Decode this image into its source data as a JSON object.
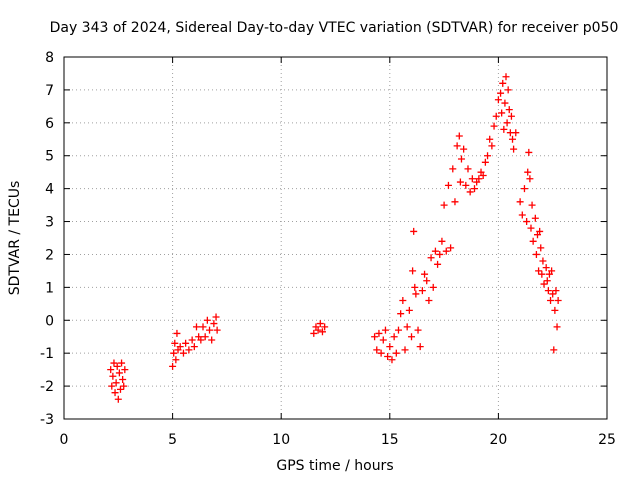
{
  "chart_data": {
    "type": "scatter",
    "title": "Day 343 of 2024, Sidereal Day-to-day VTEC variation (SDTVAR) for receiver p050",
    "xlabel": "GPS time / hours",
    "ylabel": "SDTVAR / TECUs",
    "xlim": [
      0,
      25
    ],
    "ylim": [
      -3,
      8
    ],
    "xticks": [
      0,
      5,
      10,
      15,
      20,
      25
    ],
    "yticks": [
      -3,
      -2,
      -1,
      0,
      1,
      2,
      3,
      4,
      5,
      6,
      7,
      8
    ],
    "grid": true,
    "marker": "plus",
    "color": "#ff0000",
    "series": [
      {
        "name": "SDTVAR",
        "points": [
          [
            2.15,
            -1.5
          ],
          [
            2.2,
            -2.0
          ],
          [
            2.25,
            -1.7
          ],
          [
            2.3,
            -1.3
          ],
          [
            2.35,
            -2.2
          ],
          [
            2.4,
            -1.9
          ],
          [
            2.45,
            -1.4
          ],
          [
            2.5,
            -2.4
          ],
          [
            2.55,
            -1.6
          ],
          [
            2.6,
            -2.1
          ],
          [
            2.65,
            -1.3
          ],
          [
            2.7,
            -1.8
          ],
          [
            2.75,
            -2.0
          ],
          [
            2.8,
            -1.5
          ],
          [
            5.0,
            -1.4
          ],
          [
            5.05,
            -1.0
          ],
          [
            5.1,
            -0.7
          ],
          [
            5.15,
            -1.2
          ],
          [
            5.2,
            -0.4
          ],
          [
            5.25,
            -0.9
          ],
          [
            5.35,
            -0.8
          ],
          [
            5.5,
            -1.0
          ],
          [
            5.6,
            -0.7
          ],
          [
            5.75,
            -0.9
          ],
          [
            5.9,
            -0.6
          ],
          [
            6.0,
            -0.8
          ],
          [
            6.1,
            -0.2
          ],
          [
            6.2,
            -0.5
          ],
          [
            6.3,
            -0.6
          ],
          [
            6.4,
            -0.2
          ],
          [
            6.5,
            -0.5
          ],
          [
            6.6,
            0.0
          ],
          [
            6.7,
            -0.3
          ],
          [
            6.8,
            -0.6
          ],
          [
            6.9,
            -0.1
          ],
          [
            7.0,
            0.1
          ],
          [
            7.05,
            -0.3
          ],
          [
            11.5,
            -0.4
          ],
          [
            11.6,
            -0.2
          ],
          [
            11.7,
            -0.3
          ],
          [
            11.8,
            -0.1
          ],
          [
            11.9,
            -0.35
          ],
          [
            12.0,
            -0.2
          ],
          [
            14.3,
            -0.5
          ],
          [
            14.4,
            -0.9
          ],
          [
            14.5,
            -0.4
          ],
          [
            14.6,
            -1.0
          ],
          [
            14.7,
            -0.6
          ],
          [
            14.8,
            -0.3
          ],
          [
            14.9,
            -1.1
          ],
          [
            15.0,
            -0.8
          ],
          [
            15.1,
            -1.2
          ],
          [
            15.2,
            -0.5
          ],
          [
            15.3,
            -1.0
          ],
          [
            15.4,
            -0.3
          ],
          [
            15.5,
            0.2
          ],
          [
            15.6,
            0.6
          ],
          [
            15.7,
            -0.9
          ],
          [
            15.8,
            -0.2
          ],
          [
            15.9,
            0.3
          ],
          [
            16.0,
            -0.5
          ],
          [
            16.05,
            1.5
          ],
          [
            16.1,
            2.7
          ],
          [
            16.15,
            1.0
          ],
          [
            16.2,
            0.8
          ],
          [
            16.3,
            -0.3
          ],
          [
            16.4,
            -0.8
          ],
          [
            16.5,
            0.9
          ],
          [
            16.6,
            1.4
          ],
          [
            16.7,
            1.2
          ],
          [
            16.8,
            0.6
          ],
          [
            16.9,
            1.9
          ],
          [
            17.0,
            1.0
          ],
          [
            17.1,
            2.1
          ],
          [
            17.2,
            1.7
          ],
          [
            17.3,
            2.0
          ],
          [
            17.4,
            2.4
          ],
          [
            17.5,
            3.5
          ],
          [
            17.6,
            2.1
          ],
          [
            17.7,
            4.1
          ],
          [
            17.8,
            2.2
          ],
          [
            17.9,
            4.6
          ],
          [
            18.0,
            3.6
          ],
          [
            18.1,
            5.3
          ],
          [
            18.2,
            5.6
          ],
          [
            18.25,
            4.2
          ],
          [
            18.3,
            4.9
          ],
          [
            18.4,
            5.2
          ],
          [
            18.5,
            4.1
          ],
          [
            18.6,
            4.6
          ],
          [
            18.7,
            3.9
          ],
          [
            18.8,
            4.3
          ],
          [
            18.9,
            4.0
          ],
          [
            19.0,
            4.2
          ],
          [
            19.1,
            4.3
          ],
          [
            19.2,
            4.5
          ],
          [
            19.3,
            4.4
          ],
          [
            19.4,
            4.8
          ],
          [
            19.5,
            5.0
          ],
          [
            19.6,
            5.5
          ],
          [
            19.7,
            5.3
          ],
          [
            19.8,
            5.9
          ],
          [
            19.9,
            6.2
          ],
          [
            20.0,
            6.7
          ],
          [
            20.1,
            6.9
          ],
          [
            20.15,
            6.3
          ],
          [
            20.2,
            7.2
          ],
          [
            20.25,
            5.8
          ],
          [
            20.3,
            6.6
          ],
          [
            20.35,
            7.4
          ],
          [
            20.4,
            6.0
          ],
          [
            20.45,
            7.0
          ],
          [
            20.5,
            6.4
          ],
          [
            20.55,
            5.7
          ],
          [
            20.6,
            6.2
          ],
          [
            20.65,
            5.5
          ],
          [
            20.7,
            5.2
          ],
          [
            20.8,
            5.7
          ],
          [
            21.0,
            3.6
          ],
          [
            21.1,
            3.2
          ],
          [
            21.2,
            4.0
          ],
          [
            21.3,
            3.0
          ],
          [
            21.35,
            4.5
          ],
          [
            21.4,
            5.1
          ],
          [
            21.45,
            4.3
          ],
          [
            21.5,
            2.8
          ],
          [
            21.55,
            3.5
          ],
          [
            21.6,
            2.4
          ],
          [
            21.7,
            3.1
          ],
          [
            21.75,
            2.0
          ],
          [
            21.8,
            2.6
          ],
          [
            21.85,
            1.5
          ],
          [
            21.9,
            2.7
          ],
          [
            21.95,
            2.2
          ],
          [
            22.0,
            1.4
          ],
          [
            22.05,
            1.8
          ],
          [
            22.1,
            1.1
          ],
          [
            22.2,
            1.6
          ],
          [
            22.25,
            1.2
          ],
          [
            22.3,
            0.9
          ],
          [
            22.35,
            1.4
          ],
          [
            22.4,
            0.6
          ],
          [
            22.45,
            1.5
          ],
          [
            22.5,
            0.8
          ],
          [
            22.55,
            -0.9
          ],
          [
            22.6,
            0.3
          ],
          [
            22.65,
            0.9
          ],
          [
            22.7,
            -0.2
          ],
          [
            22.75,
            0.6
          ]
        ]
      }
    ]
  }
}
